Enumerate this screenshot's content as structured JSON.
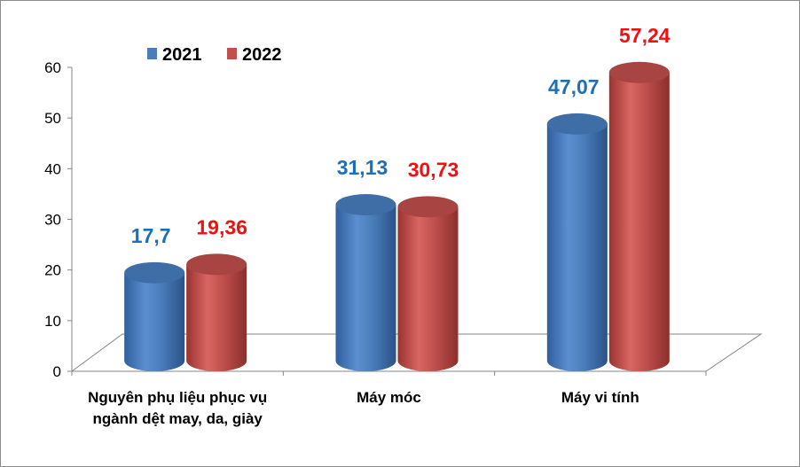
{
  "chart_data": {
    "type": "bar",
    "categories": [
      [
        "Nguyên phụ liệu phục vụ",
        "ngành dệt may, da, giày"
      ],
      [
        "Máy móc"
      ],
      [
        "Máy vi tính"
      ]
    ],
    "series": [
      {
        "name": "2021",
        "values": [
          17.7,
          31.13,
          47.07
        ],
        "labels": [
          "17,7",
          "31,13",
          "47,07"
        ],
        "color": "#4a7ebb",
        "label_color": "#1f6fb7"
      },
      {
        "name": "2022",
        "values": [
          19.36,
          30.73,
          57.24
        ],
        "labels": [
          "19,36",
          "30,73",
          "57,24"
        ],
        "color": "#c0504d",
        "label_color": "#ee1111"
      }
    ],
    "ylim": [
      0,
      60
    ],
    "yticks": [
      "0",
      "10",
      "20",
      "30",
      "40",
      "50",
      "60"
    ],
    "grid": false,
    "legend_position": "top-left",
    "style": "3d-cylinder"
  }
}
